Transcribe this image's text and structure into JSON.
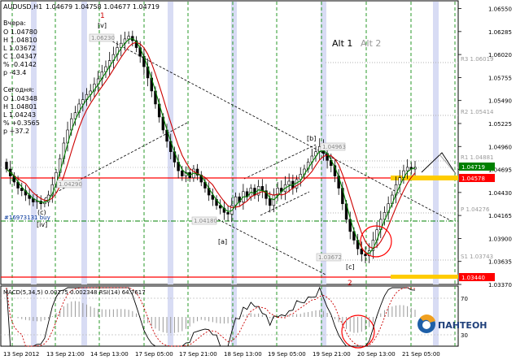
{
  "header": {
    "symbol": "AUDUSD,H1",
    "ohlc": "1.04679 1.04758 1.04677 1.04719"
  },
  "info_yesterday": {
    "title": "Вчера:",
    "lines": [
      "O 1.04780",
      "H 1.04810",
      "L 1.03672",
      "C 1.04347",
      "% -0.4142",
      "p -43.4"
    ]
  },
  "info_today": {
    "title": "Сегодня:",
    "lines": [
      "O 1.04348",
      "H 1.04801",
      "L 1.04243",
      "% +0.3565",
      "p +37.2"
    ]
  },
  "alt": {
    "alt1": "Alt 1",
    "alt2": "Alt 2"
  },
  "wave_labels": {
    "w1": "1",
    "w_v": "[v]",
    "w_c": "(c)",
    "w_iv": "[iv]",
    "w_a": "[a]",
    "w_b": "[b]",
    "w_c2": "[c]",
    "w2": "2",
    "buy_note": "#16973131 buy"
  },
  "level_labels": {
    "r3": "R3 1.06019",
    "r2": "R2 1.05414",
    "r1": "R1 1.04881",
    "p": "P 1.04276",
    "s1": "S1 1.03743"
  },
  "chart_tags": {
    "t1": "1.06230",
    "t2": "1.04290",
    "t3": "1.04963",
    "t4": "1.04180",
    "t5": "1.03672"
  },
  "price_axis": {
    "ticks": [
      "1.06550",
      "1.06285",
      "1.06020",
      "1.05755",
      "1.05490",
      "1.05225",
      "1.04960",
      "1.04695",
      "1.04430",
      "1.04165",
      "1.03900",
      "1.03635",
      "1.03370"
    ],
    "current": "1.04719",
    "resistance": "1.04578",
    "support": "1.03440"
  },
  "indicator": {
    "label": "MACD(5,34,5) 0.00275 0.002348  RSI(14) 64.7617",
    "ticks": [
      "70",
      "30"
    ]
  },
  "time_axis": {
    "ticks": [
      "13 Sep 2012",
      "13 Sep 21:00",
      "14 Sep 13:00",
      "17 Sep 05:00",
      "17 Sep 21:00",
      "18 Sep 13:00",
      "19 Sep 05:00",
      "19 Sep 21:00",
      "20 Sep 13:00",
      "21 Sep 05:00"
    ]
  },
  "brand": {
    "name": "ПАНТЕОН"
  },
  "colors": {
    "bull_candle": "#ffffff",
    "bear_candle": "#000000",
    "ma_fast": "#008000",
    "ma_slow": "#cc0000",
    "level_red": "#ff0000",
    "level_green": "#008000",
    "highlight": "#ffcc00",
    "vband": "#d8dcf4",
    "brand_blue": "#1e5fa8",
    "brand_orange": "#f0a020"
  },
  "chart_data": {
    "type": "candlestick",
    "symbol": "AUDUSD",
    "timeframe": "H1",
    "ylim": [
      1.0337,
      1.0663
    ],
    "close": [
      1.047,
      1.0462,
      1.0455,
      1.0448,
      1.0445,
      1.044,
      1.0436,
      1.0432,
      1.0433,
      1.043,
      1.0432,
      1.044,
      1.0452,
      1.0466,
      1.0482,
      1.05,
      1.0515,
      1.0528,
      1.0535,
      1.0545,
      1.055,
      1.0556,
      1.056,
      1.0568,
      1.0574,
      1.0582,
      1.0588,
      1.0595,
      1.0602,
      1.061,
      1.0615,
      1.062,
      1.0623,
      1.0618,
      1.061,
      1.06,
      1.0588,
      1.0575,
      1.056,
      1.0545,
      1.053,
      1.0515,
      1.0502,
      1.049,
      1.0478,
      1.0468,
      1.0462,
      1.0466,
      1.046,
      1.047,
      1.0463,
      1.0455,
      1.0448,
      1.044,
      1.0435,
      1.0428,
      1.0425,
      1.042,
      1.0418,
      1.0428,
      1.0438,
      1.0432,
      1.0444,
      1.0438,
      1.0448,
      1.044,
      1.045,
      1.0445,
      1.0436,
      1.0428,
      1.044,
      1.0448,
      1.0444,
      1.0452,
      1.0456,
      1.0448,
      1.0458,
      1.0464,
      1.047,
      1.0478,
      1.0485,
      1.049,
      1.0496,
      1.0488,
      1.048,
      1.0474,
      1.0462,
      1.0448,
      1.043,
      1.0412,
      1.0398,
      1.0388,
      1.0378,
      1.0372,
      1.037,
      1.0376,
      1.0388,
      1.04,
      1.0412,
      1.042,
      1.043,
      1.044,
      1.0452,
      1.046,
      1.0468,
      1.0472,
      1.047,
      1.0472
    ]
  }
}
